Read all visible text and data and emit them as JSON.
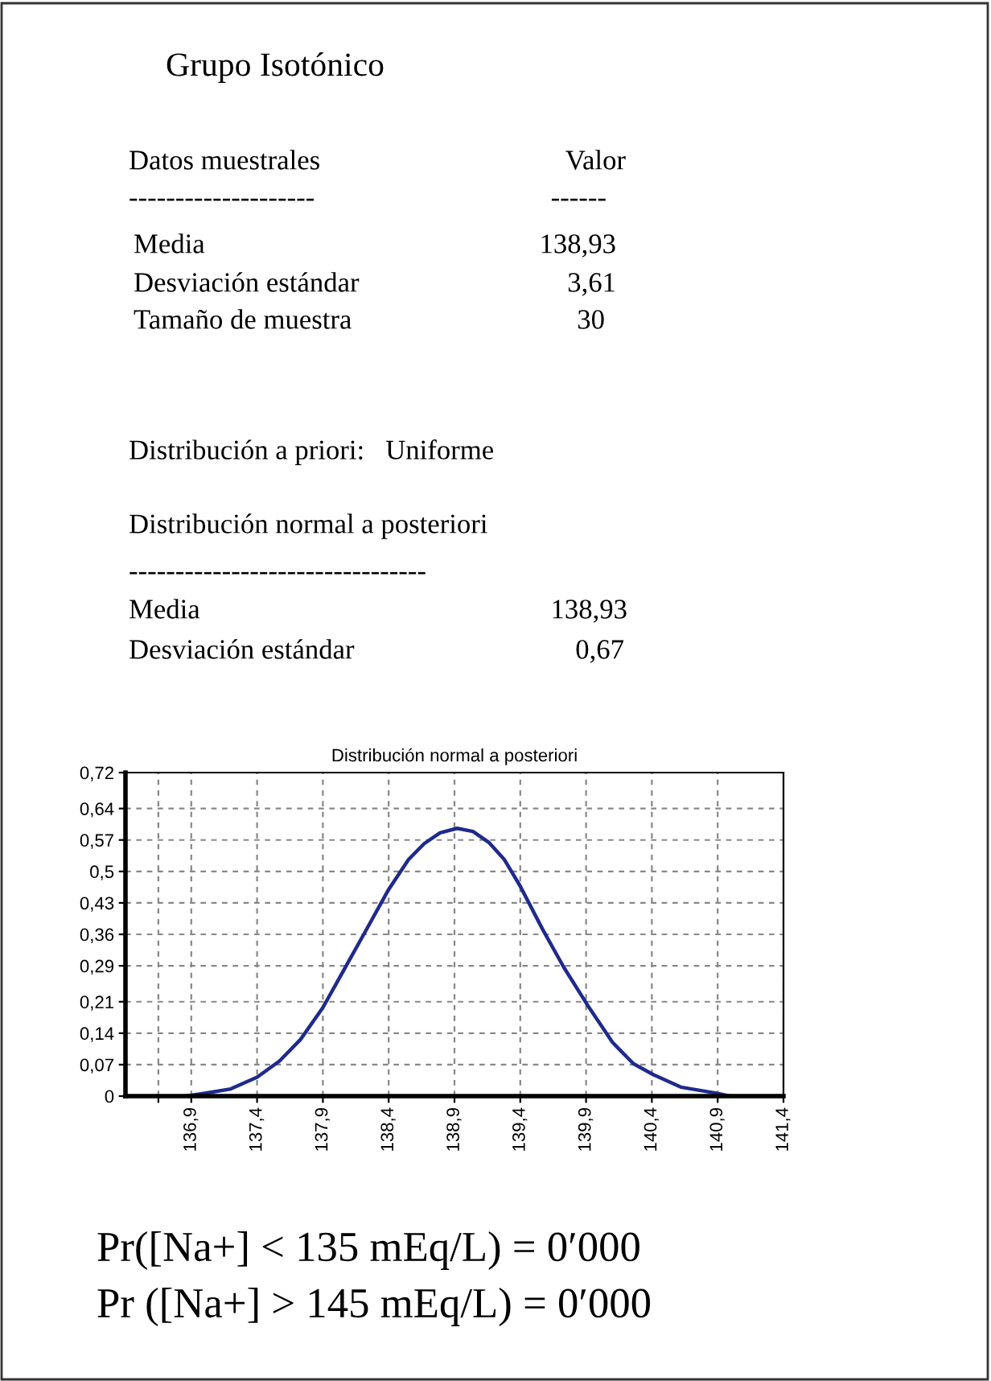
{
  "chart_data": {
    "type": "line",
    "title": "Distribución normal a posteriori",
    "annotations": [
      "Grupo Isotónico",
      "Datos muestrales",
      "Valor",
      "--------------------",
      "------",
      "Media",
      "138,93",
      "Desviación estándar",
      "3,61",
      "Tamaño de muestra",
      "30",
      "Distribución a priori:   Uniforme",
      "Distribución normal a posteriori",
      "--------------------------------",
      "Media",
      "138,93",
      "Desviación estándar",
      "0,67",
      "Pr([Na+] < 135 mEq/L) = 0′000",
      "Pr ([Na+] > 145 mEq/L) = 0′000"
    ],
    "series": [
      {
        "color": "#1f2a8c",
        "x": [
          136.86,
          137.04,
          137.2,
          137.4,
          137.57,
          137.73,
          137.9,
          138.06,
          138.22,
          138.4,
          138.55,
          138.67,
          138.79,
          138.92,
          139.04,
          139.16,
          139.28,
          139.4,
          139.57,
          139.73,
          139.91,
          140.1,
          140.26,
          140.41,
          140.62,
          140.9,
          140.99
        ],
        "values": [
          0,
          0.008,
          0.016,
          0.042,
          0.078,
          0.126,
          0.197,
          0.281,
          0.365,
          0.46,
          0.526,
          0.562,
          0.586,
          0.596,
          0.589,
          0.565,
          0.526,
          0.467,
          0.371,
          0.287,
          0.203,
          0.12,
          0.072,
          0.048,
          0.02,
          0.006,
          0
        ]
      }
    ],
    "xlim": [
      136.4,
      141.4
    ],
    "xticks": [
      {
        "value": 136.65,
        "label": null
      },
      {
        "value": 136.9,
        "label": "136,9"
      },
      {
        "value": 137.4,
        "label": "137,4"
      },
      {
        "value": 137.9,
        "label": "137,9"
      },
      {
        "value": 138.4,
        "label": "138,4"
      },
      {
        "value": 138.9,
        "label": "138,9"
      },
      {
        "value": 139.4,
        "label": "139,4"
      },
      {
        "value": 139.9,
        "label": "139,9"
      },
      {
        "value": 140.4,
        "label": "140,4"
      },
      {
        "value": 140.9,
        "label": "140,9"
      },
      {
        "value": 141.4,
        "label": "141,4"
      }
    ],
    "ylim": [
      0,
      0.72
    ],
    "yticks": [
      0,
      {
        "value": 0.07,
        "label": "0,07"
      },
      {
        "value": 0.14,
        "label": "0,14"
      },
      {
        "value": 0.21,
        "label": "0,21"
      },
      {
        "value": 0.29,
        "label": "0,29"
      },
      {
        "value": 0.36,
        "label": "0,36"
      },
      {
        "value": 0.43,
        "label": "0,43"
      },
      {
        "value": 0.5,
        "label": "0,5"
      },
      {
        "value": 0.57,
        "label": "0,57"
      },
      {
        "value": 0.64,
        "label": "0,64"
      },
      {
        "value": 0.72,
        "label": "0,72"
      }
    ],
    "grid": true,
    "marker": "none",
    "line_style": "solid"
  }
}
